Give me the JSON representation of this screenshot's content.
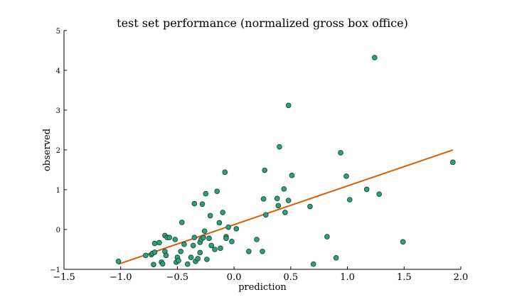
{
  "chart_data": {
    "type": "scatter",
    "title": "test set performance (normalized gross box office)",
    "xlabel": "prediction",
    "ylabel": "observed",
    "xlim": [
      -1.5,
      2.0
    ],
    "ylim": [
      -1,
      5
    ],
    "xticks": [
      -1.5,
      -1.0,
      -0.5,
      0.0,
      0.5,
      1.0,
      1.5,
      2.0
    ],
    "xtick_labels": [
      "−1.5",
      "−1.0",
      "−0.5",
      "0.0",
      "0.5",
      "1.0",
      "1.5",
      "2.0"
    ],
    "yticks": [
      -1,
      0,
      1,
      2,
      3,
      4,
      5
    ],
    "ytick_labels": [
      "−1",
      "0",
      "1",
      "2",
      "3",
      "4",
      "5"
    ],
    "grid": false,
    "series": [
      {
        "kind": "scatter",
        "color": "#2ca07a",
        "points": [
          [
            -1.02,
            -0.8
          ],
          [
            -0.78,
            -0.65
          ],
          [
            -0.73,
            -0.63
          ],
          [
            -0.72,
            -0.6
          ],
          [
            -0.7,
            -0.57
          ],
          [
            -0.71,
            -0.88
          ],
          [
            -0.7,
            -0.35
          ],
          [
            -0.66,
            -0.33
          ],
          [
            -0.64,
            -0.82
          ],
          [
            -0.63,
            -0.86
          ],
          [
            -0.61,
            -0.15
          ],
          [
            -0.61,
            -0.55
          ],
          [
            -0.6,
            -0.65
          ],
          [
            -0.59,
            -0.2
          ],
          [
            -0.57,
            -0.2
          ],
          [
            -0.52,
            -0.25
          ],
          [
            -0.51,
            -0.82
          ],
          [
            -0.5,
            -0.7
          ],
          [
            -0.49,
            -0.78
          ],
          [
            -0.47,
            -0.55
          ],
          [
            -0.46,
            0.18
          ],
          [
            -0.44,
            -0.37
          ],
          [
            -0.41,
            -0.87
          ],
          [
            -0.38,
            -0.7
          ],
          [
            -0.36,
            -0.4
          ],
          [
            -0.35,
            0.65
          ],
          [
            -0.35,
            -0.2
          ],
          [
            -0.34,
            -0.8
          ],
          [
            -0.32,
            -0.73
          ],
          [
            -0.3,
            -0.32
          ],
          [
            -0.3,
            -0.58
          ],
          [
            -0.29,
            -0.25
          ],
          [
            -0.28,
            0.64
          ],
          [
            -0.27,
            -0.2
          ],
          [
            -0.26,
            -0.04
          ],
          [
            -0.25,
            0.9
          ],
          [
            -0.24,
            -0.75
          ],
          [
            -0.22,
            -0.22
          ],
          [
            -0.21,
            0.35
          ],
          [
            -0.2,
            -0.4
          ],
          [
            -0.17,
            -0.5
          ],
          [
            -0.15,
            0.96
          ],
          [
            -0.13,
            0.17
          ],
          [
            -0.12,
            -0.47
          ],
          [
            -0.1,
            0.43
          ],
          [
            -0.08,
            1.44
          ],
          [
            -0.07,
            -0.18
          ],
          [
            -0.07,
            -0.22
          ],
          [
            -0.05,
            0.06
          ],
          [
            -0.02,
            -0.3
          ],
          [
            0.02,
            0.02
          ],
          [
            0.13,
            -0.55
          ],
          [
            0.2,
            -0.25
          ],
          [
            0.25,
            -0.55
          ],
          [
            0.26,
            0.77
          ],
          [
            0.27,
            1.49
          ],
          [
            0.28,
            0.37
          ],
          [
            0.38,
            0.78
          ],
          [
            0.39,
            0.6
          ],
          [
            0.4,
            2.08
          ],
          [
            0.44,
            1.02
          ],
          [
            0.45,
            0.43
          ],
          [
            0.48,
            0.73
          ],
          [
            0.48,
            3.12
          ],
          [
            0.51,
            1.36
          ],
          [
            0.67,
            0.58
          ],
          [
            0.7,
            -0.87
          ],
          [
            0.82,
            -0.18
          ],
          [
            0.9,
            -0.71
          ],
          [
            0.94,
            1.93
          ],
          [
            0.99,
            1.34
          ],
          [
            1.02,
            0.75
          ],
          [
            1.17,
            1.01
          ],
          [
            1.24,
            4.32
          ],
          [
            1.28,
            0.89
          ],
          [
            1.49,
            -0.31
          ],
          [
            1.93,
            1.69
          ]
        ]
      },
      {
        "kind": "line",
        "color": "#d95f02",
        "points": [
          [
            -1.02,
            -0.87
          ],
          [
            1.93,
            2.0
          ]
        ]
      }
    ]
  }
}
